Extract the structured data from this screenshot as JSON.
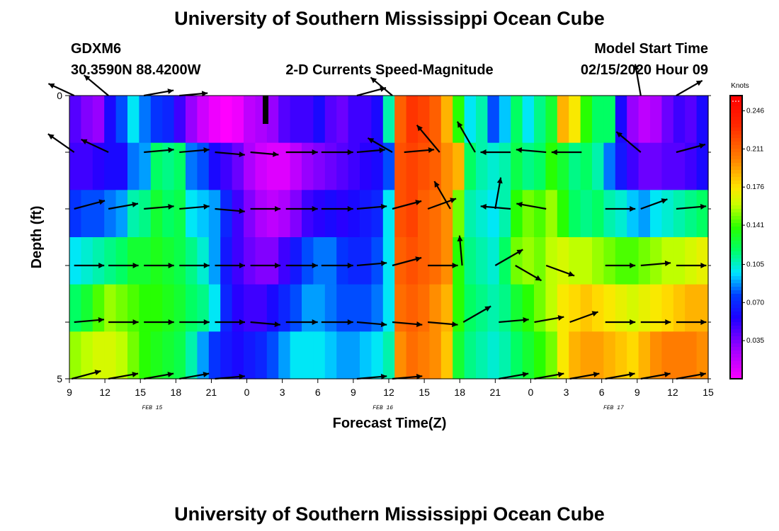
{
  "header": {
    "title": "University of Southern Mississippi Ocean Cube",
    "station_id": "GDXM6",
    "coordinates": "30.3590N 88.4200W",
    "plot_title": "2-D Currents Speed-Magnitude",
    "model_label": "Model Start Time",
    "model_time": "02/15/2020 Hour 09"
  },
  "footer": {
    "title": "University of Southern Mississippi Ocean Cube"
  },
  "chart_data": {
    "type": "heatmap",
    "title": "2-D Currents Speed-Magnitude",
    "xlabel": "Forecast Time(Z)",
    "ylabel": "Depth (ft)",
    "x_hours": [
      0,
      54
    ],
    "y_depth_range": [
      0,
      5
    ],
    "y_ticks": [
      "0",
      "5"
    ],
    "x_tick_labels": [
      "9",
      "12",
      "15",
      "18",
      "21",
      "0",
      "3",
      "6",
      "9",
      "12",
      "15",
      "18",
      "21",
      "0",
      "3",
      "6",
      "9",
      "12",
      "15"
    ],
    "date_labels": [
      {
        "text": "FEB 15",
        "hour": 7
      },
      {
        "text": "FEB 16",
        "hour": 26.5
      },
      {
        "text": "FEB 17",
        "hour": 46
      }
    ],
    "colorbar": {
      "unit": "Knots",
      "ticks": [
        "0.246",
        "0.211",
        "0.176",
        "0.141",
        "0.105",
        "0.070",
        "0.035"
      ],
      "min": 0.0,
      "max": 0.26
    },
    "rows": [
      {
        "label": "row-1",
        "speeds": [
          0.045,
          0.035,
          0.03,
          0.06,
          0.08,
          0.1,
          0.085,
          0.075,
          0.07,
          0.05,
          0.03,
          0.015,
          0.005,
          0.0,
          0.005,
          0.02,
          0.025,
          0.03,
          0.045,
          0.05,
          0.05,
          0.06,
          0.045,
          0.04,
          0.05,
          0.05,
          0.06,
          0.11,
          0.215,
          0.23,
          0.225,
          0.215,
          0.19,
          0.14,
          0.1,
          0.11,
          0.08,
          0.095,
          0.12,
          0.1,
          0.115,
          0.13,
          0.19,
          0.175,
          0.14,
          0.12,
          0.12,
          0.06,
          0.03,
          0.02,
          0.025,
          0.04,
          0.05,
          0.045,
          0.06
        ]
      },
      {
        "label": "row-2",
        "speeds": [
          0.05,
          0.05,
          0.055,
          0.06,
          0.06,
          0.085,
          0.09,
          0.12,
          0.115,
          0.12,
          0.085,
          0.08,
          0.06,
          0.05,
          0.04,
          0.025,
          0.015,
          0.01,
          0.01,
          0.02,
          0.03,
          0.035,
          0.04,
          0.045,
          0.05,
          0.055,
          0.06,
          0.08,
          0.22,
          0.225,
          0.22,
          0.215,
          0.2,
          0.19,
          0.12,
          0.11,
          0.105,
          0.11,
          0.125,
          0.115,
          0.12,
          0.14,
          0.13,
          0.115,
          0.12,
          0.11,
          0.085,
          0.065,
          0.05,
          0.04,
          0.04,
          0.045,
          0.045,
          0.05,
          0.06
        ]
      },
      {
        "label": "row-3",
        "speeds": [
          0.075,
          0.08,
          0.08,
          0.085,
          0.09,
          0.11,
          0.115,
          0.13,
          0.12,
          0.125,
          0.1,
          0.095,
          0.09,
          0.07,
          0.05,
          0.035,
          0.025,
          0.02,
          0.025,
          0.035,
          0.05,
          0.055,
          0.06,
          0.055,
          0.06,
          0.065,
          0.07,
          0.1,
          0.22,
          0.225,
          0.215,
          0.21,
          0.2,
          0.15,
          0.11,
          0.105,
          0.1,
          0.11,
          0.14,
          0.15,
          0.145,
          0.155,
          0.14,
          0.12,
          0.115,
          0.12,
          0.11,
          0.105,
          0.095,
          0.09,
          0.1,
          0.105,
          0.11,
          0.115,
          0.12
        ]
      },
      {
        "label": "row-4",
        "speeds": [
          0.1,
          0.105,
          0.11,
          0.115,
          0.12,
          0.13,
          0.13,
          0.135,
          0.13,
          0.125,
          0.115,
          0.105,
          0.09,
          0.065,
          0.05,
          0.04,
          0.035,
          0.035,
          0.05,
          0.065,
          0.08,
          0.085,
          0.085,
          0.075,
          0.07,
          0.07,
          0.08,
          0.1,
          0.215,
          0.22,
          0.215,
          0.21,
          0.2,
          0.14,
          0.115,
          0.11,
          0.105,
          0.12,
          0.15,
          0.155,
          0.15,
          0.16,
          0.165,
          0.16,
          0.16,
          0.155,
          0.15,
          0.145,
          0.145,
          0.15,
          0.155,
          0.16,
          0.16,
          0.165,
          0.17
        ]
      },
      {
        "label": "row-5",
        "speeds": [
          0.12,
          0.13,
          0.145,
          0.155,
          0.15,
          0.145,
          0.14,
          0.14,
          0.135,
          0.13,
          0.12,
          0.115,
          0.1,
          0.07,
          0.055,
          0.05,
          0.05,
          0.06,
          0.07,
          0.08,
          0.09,
          0.09,
          0.085,
          0.08,
          0.08,
          0.08,
          0.085,
          0.1,
          0.21,
          0.215,
          0.21,
          0.2,
          0.19,
          0.14,
          0.12,
          0.115,
          0.11,
          0.115,
          0.13,
          0.14,
          0.15,
          0.16,
          0.175,
          0.18,
          0.185,
          0.18,
          0.175,
          0.17,
          0.165,
          0.17,
          0.175,
          0.18,
          0.185,
          0.19,
          0.19
        ]
      },
      {
        "label": "row-6",
        "speeds": [
          0.155,
          0.16,
          0.165,
          0.165,
          0.16,
          0.15,
          0.14,
          0.135,
          0.13,
          0.125,
          0.11,
          0.09,
          0.075,
          0.065,
          0.06,
          0.065,
          0.07,
          0.08,
          0.09,
          0.1,
          0.1,
          0.1,
          0.095,
          0.09,
          0.09,
          0.095,
          0.1,
          0.11,
          0.2,
          0.21,
          0.205,
          0.2,
          0.185,
          0.13,
          0.115,
          0.11,
          0.105,
          0.11,
          0.12,
          0.13,
          0.14,
          0.15,
          0.175,
          0.19,
          0.195,
          0.195,
          0.19,
          0.185,
          0.18,
          0.19,
          0.2,
          0.205,
          0.205,
          0.205,
          0.2
        ]
      }
    ],
    "vectors": [
      {
        "depth": 0,
        "hour": 0.4,
        "dir": 295,
        "mag": 0.8
      },
      {
        "depth": 0,
        "hour": 3.3,
        "dir": 310,
        "mag": 0.9
      },
      {
        "depth": 0,
        "hour": 6.3,
        "dir": 80,
        "mag": 0.85
      },
      {
        "depth": 0,
        "hour": 9.3,
        "dir": 85,
        "mag": 0.8
      },
      {
        "depth": 0,
        "hour": 24.3,
        "dir": 75,
        "mag": 0.85
      },
      {
        "depth": 0,
        "hour": 27.3,
        "dir": 310,
        "mag": 0.8
      },
      {
        "depth": 0,
        "hour": 48.3,
        "dir": 350,
        "mag": 0.9
      },
      {
        "depth": 0,
        "hour": 51.3,
        "dir": 60,
        "mag": 0.85
      },
      {
        "depth": 1,
        "hour": 0.4,
        "dir": 305,
        "mag": 0.9
      },
      {
        "depth": 1,
        "hour": 3.3,
        "dir": 295,
        "mag": 0.85
      },
      {
        "depth": 1,
        "hour": 6.3,
        "dir": 85,
        "mag": 0.85
      },
      {
        "depth": 1,
        "hour": 9.3,
        "dir": 85,
        "mag": 0.85
      },
      {
        "depth": 1,
        "hour": 12.3,
        "dir": 95,
        "mag": 0.85
      },
      {
        "depth": 1,
        "hour": 15.3,
        "dir": 95,
        "mag": 0.8
      },
      {
        "depth": 1,
        "hour": 18.3,
        "dir": 90,
        "mag": 0.9
      },
      {
        "depth": 1,
        "hour": 21.3,
        "dir": 90,
        "mag": 0.9
      },
      {
        "depth": 1,
        "hour": 24.3,
        "dir": 85,
        "mag": 0.8
      },
      {
        "depth": 1,
        "hour": 27.3,
        "dir": 300,
        "mag": 0.8
      },
      {
        "depth": 1,
        "hour": 28.3,
        "dir": 85,
        "mag": 0.85
      },
      {
        "depth": 1,
        "hour": 31.3,
        "dir": 320,
        "mag": 1.0
      },
      {
        "depth": 1,
        "hour": 34.3,
        "dir": 330,
        "mag": 1.0
      },
      {
        "depth": 1,
        "hour": 37.3,
        "dir": 270,
        "mag": 0.85
      },
      {
        "depth": 1,
        "hour": 40.3,
        "dir": 275,
        "mag": 0.85
      },
      {
        "depth": 1,
        "hour": 43.3,
        "dir": 270,
        "mag": 0.85
      },
      {
        "depth": 1,
        "hour": 48.3,
        "dir": 310,
        "mag": 0.9
      },
      {
        "depth": 1,
        "hour": 51.3,
        "dir": 75,
        "mag": 0.85
      },
      {
        "depth": 2,
        "hour": 0.4,
        "dir": 75,
        "mag": 0.9
      },
      {
        "depth": 2,
        "hour": 3.3,
        "dir": 80,
        "mag": 0.85
      },
      {
        "depth": 2,
        "hour": 6.3,
        "dir": 85,
        "mag": 0.85
      },
      {
        "depth": 2,
        "hour": 9.3,
        "dir": 85,
        "mag": 0.85
      },
      {
        "depth": 2,
        "hour": 12.3,
        "dir": 95,
        "mag": 0.85
      },
      {
        "depth": 2,
        "hour": 15.3,
        "dir": 90,
        "mag": 0.85
      },
      {
        "depth": 2,
        "hour": 18.3,
        "dir": 90,
        "mag": 0.9
      },
      {
        "depth": 2,
        "hour": 21.3,
        "dir": 90,
        "mag": 0.9
      },
      {
        "depth": 2,
        "hour": 24.3,
        "dir": 85,
        "mag": 0.85
      },
      {
        "depth": 2,
        "hour": 27.3,
        "dir": 75,
        "mag": 0.85
      },
      {
        "depth": 2,
        "hour": 30.3,
        "dir": 70,
        "mag": 0.85
      },
      {
        "depth": 2,
        "hour": 32.2,
        "dir": 330,
        "mag": 0.9
      },
      {
        "depth": 2,
        "hour": 36.0,
        "dir": 10,
        "mag": 0.9
      },
      {
        "depth": 2,
        "hour": 37.3,
        "dir": 275,
        "mag": 0.85
      },
      {
        "depth": 2,
        "hour": 40.3,
        "dir": 280,
        "mag": 0.85
      },
      {
        "depth": 2,
        "hour": 45.3,
        "dir": 90,
        "mag": 0.85
      },
      {
        "depth": 2,
        "hour": 48.3,
        "dir": 70,
        "mag": 0.8
      },
      {
        "depth": 2,
        "hour": 51.3,
        "dir": 85,
        "mag": 0.85
      },
      {
        "depth": 3,
        "hour": 0.4,
        "dir": 90,
        "mag": 0.85
      },
      {
        "depth": 3,
        "hour": 3.3,
        "dir": 90,
        "mag": 0.85
      },
      {
        "depth": 3,
        "hour": 6.3,
        "dir": 90,
        "mag": 0.85
      },
      {
        "depth": 3,
        "hour": 9.3,
        "dir": 90,
        "mag": 0.85
      },
      {
        "depth": 3,
        "hour": 12.3,
        "dir": 90,
        "mag": 0.85
      },
      {
        "depth": 3,
        "hour": 15.3,
        "dir": 90,
        "mag": 0.85
      },
      {
        "depth": 3,
        "hour": 18.3,
        "dir": 90,
        "mag": 0.9
      },
      {
        "depth": 3,
        "hour": 21.3,
        "dir": 90,
        "mag": 0.9
      },
      {
        "depth": 3,
        "hour": 24.3,
        "dir": 85,
        "mag": 0.85
      },
      {
        "depth": 3,
        "hour": 27.3,
        "dir": 75,
        "mag": 0.85
      },
      {
        "depth": 3,
        "hour": 30.3,
        "dir": 90,
        "mag": 0.85
      },
      {
        "depth": 3,
        "hour": 33.2,
        "dir": 355,
        "mag": 0.85
      },
      {
        "depth": 3,
        "hour": 36.0,
        "dir": 60,
        "mag": 0.9
      },
      {
        "depth": 3,
        "hour": 37.7,
        "dir": 120,
        "mag": 0.85
      },
      {
        "depth": 3,
        "hour": 40.3,
        "dir": 110,
        "mag": 0.85
      },
      {
        "depth": 3,
        "hour": 45.3,
        "dir": 90,
        "mag": 0.85
      },
      {
        "depth": 3,
        "hour": 48.3,
        "dir": 85,
        "mag": 0.85
      },
      {
        "depth": 3,
        "hour": 51.3,
        "dir": 90,
        "mag": 0.85
      },
      {
        "depth": 4,
        "hour": 0.4,
        "dir": 85,
        "mag": 0.85
      },
      {
        "depth": 4,
        "hour": 3.3,
        "dir": 90,
        "mag": 0.85
      },
      {
        "depth": 4,
        "hour": 6.3,
        "dir": 90,
        "mag": 0.85
      },
      {
        "depth": 4,
        "hour": 9.3,
        "dir": 90,
        "mag": 0.85
      },
      {
        "depth": 4,
        "hour": 12.3,
        "dir": 90,
        "mag": 0.85
      },
      {
        "depth": 4,
        "hour": 15.3,
        "dir": 95,
        "mag": 0.85
      },
      {
        "depth": 4,
        "hour": 18.3,
        "dir": 90,
        "mag": 0.9
      },
      {
        "depth": 4,
        "hour": 21.3,
        "dir": 90,
        "mag": 0.9
      },
      {
        "depth": 4,
        "hour": 24.3,
        "dir": 95,
        "mag": 0.85
      },
      {
        "depth": 4,
        "hour": 27.3,
        "dir": 95,
        "mag": 0.85
      },
      {
        "depth": 4,
        "hour": 30.3,
        "dir": 95,
        "mag": 0.85
      },
      {
        "depth": 4,
        "hour": 33.3,
        "dir": 60,
        "mag": 0.9
      },
      {
        "depth": 4,
        "hour": 36.3,
        "dir": 85,
        "mag": 0.85
      },
      {
        "depth": 4,
        "hour": 39.3,
        "dir": 80,
        "mag": 0.85
      },
      {
        "depth": 4,
        "hour": 42.3,
        "dir": 70,
        "mag": 0.85
      },
      {
        "depth": 4,
        "hour": 45.3,
        "dir": 90,
        "mag": 0.85
      },
      {
        "depth": 4,
        "hour": 48.3,
        "dir": 90,
        "mag": 0.85
      },
      {
        "depth": 4,
        "hour": 51.3,
        "dir": 90,
        "mag": 0.85
      },
      {
        "depth": 5,
        "hour": 0.2,
        "dir": 75,
        "mag": 0.85
      },
      {
        "depth": 5,
        "hour": 3.3,
        "dir": 80,
        "mag": 0.85
      },
      {
        "depth": 5,
        "hour": 6.3,
        "dir": 80,
        "mag": 0.85
      },
      {
        "depth": 5,
        "hour": 9.3,
        "dir": 80,
        "mag": 0.85
      },
      {
        "depth": 5,
        "hour": 12.3,
        "dir": 85,
        "mag": 0.85
      },
      {
        "depth": 5,
        "hour": 24.3,
        "dir": 85,
        "mag": 0.85
      },
      {
        "depth": 5,
        "hour": 27.3,
        "dir": 85,
        "mag": 0.85
      },
      {
        "depth": 5,
        "hour": 36.3,
        "dir": 80,
        "mag": 0.85
      },
      {
        "depth": 5,
        "hour": 39.3,
        "dir": 80,
        "mag": 0.85
      },
      {
        "depth": 5,
        "hour": 42.3,
        "dir": 80,
        "mag": 0.85
      },
      {
        "depth": 5,
        "hour": 45.3,
        "dir": 80,
        "mag": 0.85
      },
      {
        "depth": 5,
        "hour": 48.3,
        "dir": 80,
        "mag": 0.85
      },
      {
        "depth": 5,
        "hour": 51.3,
        "dir": 80,
        "mag": 0.85
      }
    ]
  }
}
